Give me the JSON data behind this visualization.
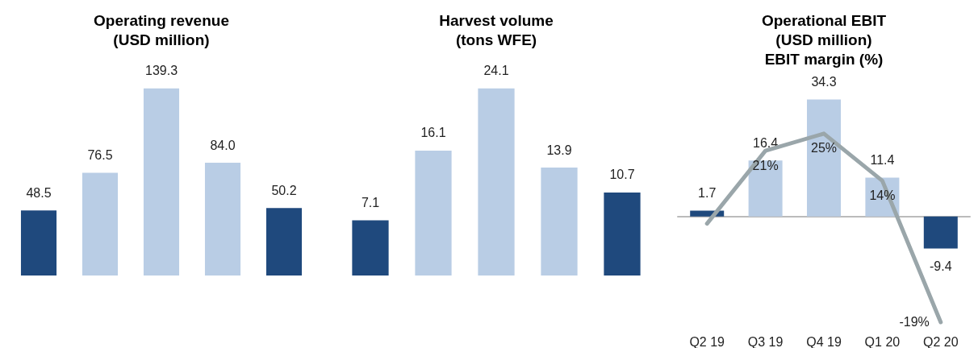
{
  "chart_data": [
    {
      "type": "bar",
      "title": "Operating revenue\n(USD million)",
      "categories": [
        null,
        null,
        null,
        null,
        null
      ],
      "tick_labels": false,
      "grid": false,
      "series": [
        {
          "values": [
            48.5,
            76.5,
            139.3,
            84.0,
            50.2
          ],
          "colors": [
            "#1f497d",
            "#b9cde5",
            "#b9cde5",
            "#b9cde5",
            "#1f497d"
          ],
          "value_labels": [
            "48.5",
            "76.5",
            "139.3",
            "84.0",
            "50.2"
          ]
        }
      ]
    },
    {
      "type": "bar",
      "title": "Harvest volume\n(tons WFE)",
      "categories": [
        null,
        null,
        null,
        null,
        null
      ],
      "tick_labels": false,
      "grid": false,
      "series": [
        {
          "values": [
            7.1,
            16.1,
            24.1,
            13.9,
            10.7
          ],
          "colors": [
            "#1f497d",
            "#b9cde5",
            "#b9cde5",
            "#b9cde5",
            "#1f497d"
          ],
          "value_labels": [
            "7.1",
            "16.1",
            "24.1",
            "13.9",
            "10.7"
          ]
        }
      ]
    },
    {
      "type": "bar",
      "title": "Operational EBIT\n(USD million)\nEBIT margin (%)",
      "categories": [
        "Q2 19",
        "Q3 19",
        "Q4 19",
        "Q1 20",
        "Q2 20"
      ],
      "tick_labels": "x",
      "grid": false,
      "marker": "none",
      "series": [
        {
          "values": [
            1.7,
            16.4,
            34.3,
            11.4,
            -9.4
          ],
          "colors": [
            "#1f497d",
            "#b9cde5",
            "#b9cde5",
            "#b9cde5",
            "#1f497d"
          ],
          "value_labels": [
            "1.7",
            "16.4",
            "34.3",
            "11.4",
            "-9.4"
          ]
        },
        {
          "type": "line",
          "axis": "y2",
          "color": "#9aa6aa",
          "values": [
            4,
            21,
            25,
            14,
            -19
          ],
          "value_labels": [
            null,
            "21%",
            "25%",
            "14%",
            "-19%"
          ]
        }
      ]
    }
  ]
}
